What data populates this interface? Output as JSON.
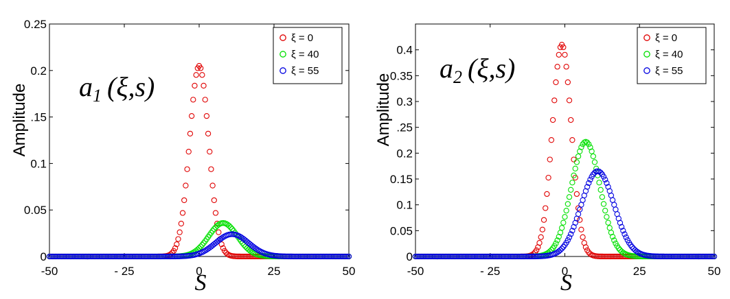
{
  "chart_data": [
    {
      "type": "scatter",
      "panel": "left",
      "annotation": {
        "letter": "a",
        "sub": "1",
        "args": "(ξ,s)"
      },
      "ylabel": "Amplitude",
      "xlabel": "S",
      "xlim": [
        -50,
        50
      ],
      "ylim": [
        0,
        0.25
      ],
      "xticks": [
        -50,
        -25,
        0,
        25,
        50
      ],
      "xtick_labels": [
        "-50",
        "- 25",
        "0",
        "25",
        "50"
      ],
      "yticks": [
        0,
        0.05,
        0.1,
        0.15,
        0.2,
        0.25
      ],
      "ytick_labels": [
        "0",
        "0.05",
        "0.1",
        ".15",
        "0.2",
        "0.25"
      ],
      "legend": {
        "placement": "top-right"
      },
      "series": [
        {
          "name": "ξ = 0",
          "color": "#e00000",
          "peak": 0.205,
          "center": 0,
          "sigma": 3.2
        },
        {
          "name": "ξ = 40",
          "color": "#00e000",
          "peak": 0.036,
          "center": 8,
          "sigma": 4.8
        },
        {
          "name": "ξ = 55",
          "color": "#0000e0",
          "peak": 0.024,
          "center": 11,
          "sigma": 5.5
        }
      ]
    },
    {
      "type": "scatter",
      "panel": "right",
      "annotation": {
        "letter": "a",
        "sub": "2",
        "args": "(ξ,s)"
      },
      "ylabel": "Amplitude",
      "xlabel": "S",
      "xlim": [
        -50,
        50
      ],
      "ylim": [
        0,
        0.45
      ],
      "xticks": [
        -50,
        -25,
        0,
        25,
        50
      ],
      "xtick_labels": [
        "-50",
        "- 25",
        "0",
        "25",
        "50"
      ],
      "yticks": [
        0,
        0.05,
        0.1,
        0.15,
        0.2,
        0.25,
        0.3,
        0.35,
        0.4
      ],
      "ytick_labels": [
        "0",
        "0.05",
        "0.1",
        "0.15",
        "0.2",
        ".25",
        "0.3",
        "0.35",
        "0.4"
      ],
      "legend": {
        "placement": "top-right"
      },
      "series": [
        {
          "name": "ξ = 0",
          "color": "#e00000",
          "peak": 0.41,
          "center": -1,
          "sigma": 3.2
        },
        {
          "name": "ξ = 40",
          "color": "#00e000",
          "peak": 0.222,
          "center": 7,
          "sigma": 4.8
        },
        {
          "name": "ξ = 55",
          "color": "#0000e0",
          "peak": 0.165,
          "center": 11,
          "sigma": 5.5
        }
      ]
    }
  ]
}
